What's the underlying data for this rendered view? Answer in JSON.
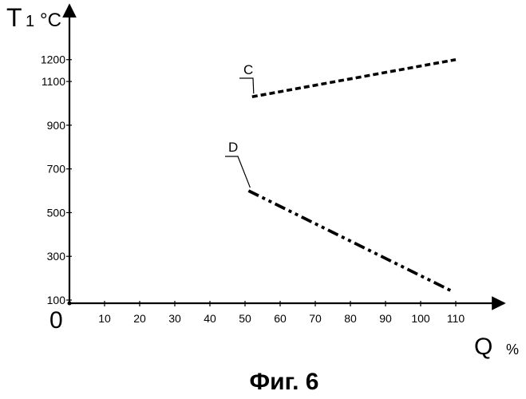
{
  "figure": {
    "caption": "Фиг. 6"
  },
  "chart_data": {
    "type": "line",
    "y_axis_symbol": "T",
    "y_axis_subscript": "1",
    "y_axis_unit": "°C",
    "x_axis_symbol": "Q",
    "x_axis_unit": "%",
    "origin_label": "0",
    "x_ticks": [
      10,
      20,
      30,
      40,
      50,
      60,
      70,
      80,
      90,
      100,
      110
    ],
    "y_ticks": [
      100,
      300,
      500,
      700,
      900,
      1100,
      1200
    ],
    "y_tick_labels": [
      "100",
      "300",
      "500",
      "700",
      "900",
      "1100",
      "1200"
    ],
    "x_tick_labels": [
      "10",
      "20",
      "30",
      "40",
      "50",
      "60",
      "70",
      "80",
      "90",
      "100",
      "110"
    ],
    "series": [
      {
        "name": "C",
        "style": "dashed",
        "x": [
          52,
          110
        ],
        "y": [
          1030,
          1200
        ]
      },
      {
        "name": "D",
        "style": "dash-dot-dot",
        "x": [
          51,
          109
        ],
        "y": [
          600,
          140
        ]
      }
    ],
    "grid": false,
    "legend": "none"
  }
}
